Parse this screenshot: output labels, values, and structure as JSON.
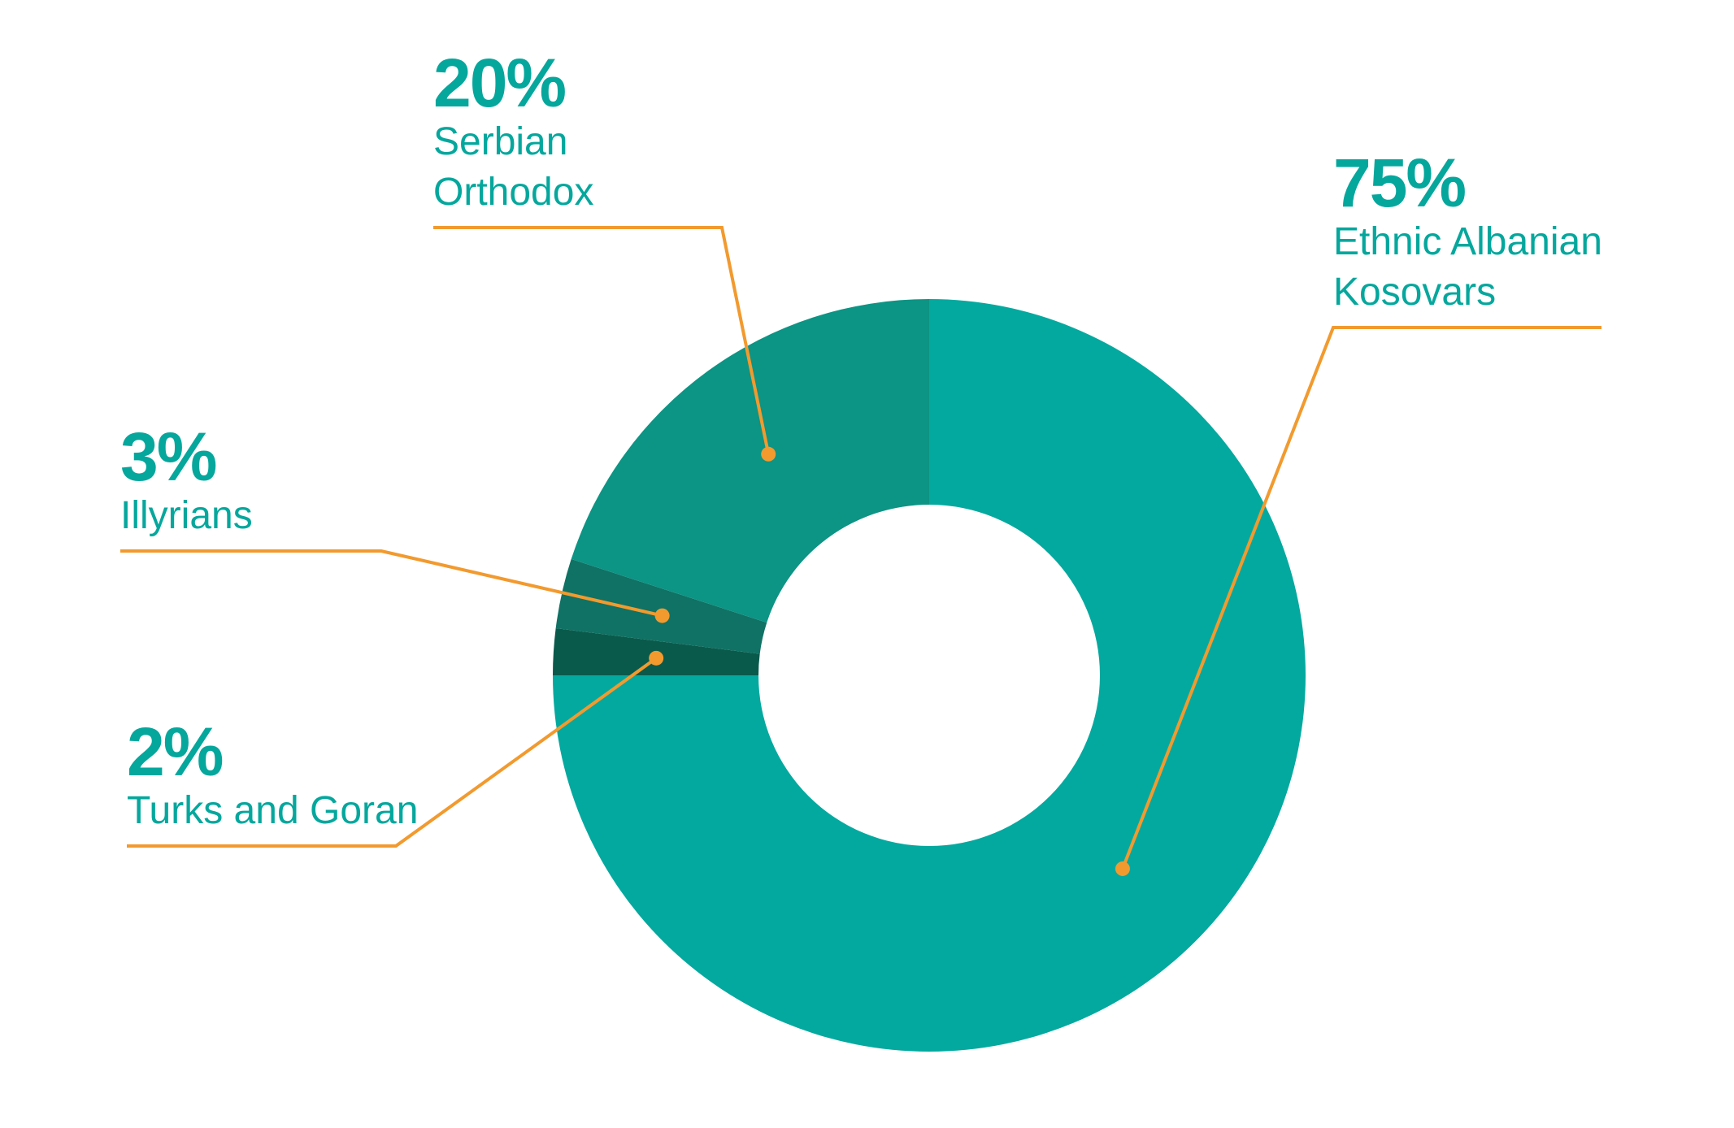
{
  "chart_data": {
    "type": "donut",
    "categories": [
      "Ethnic Albanian Kosovars",
      "Turks and Goran",
      "Illyrians",
      "Serbian Orthodox"
    ],
    "values": [
      75,
      2,
      3,
      20
    ],
    "value_labels": [
      "75%",
      "2%",
      "3%",
      "20%"
    ],
    "colors": [
      "#03a99f",
      "#0a5a4c",
      "#0f7264",
      "#0c9484"
    ],
    "leader_color": "#f29a2e"
  }
}
